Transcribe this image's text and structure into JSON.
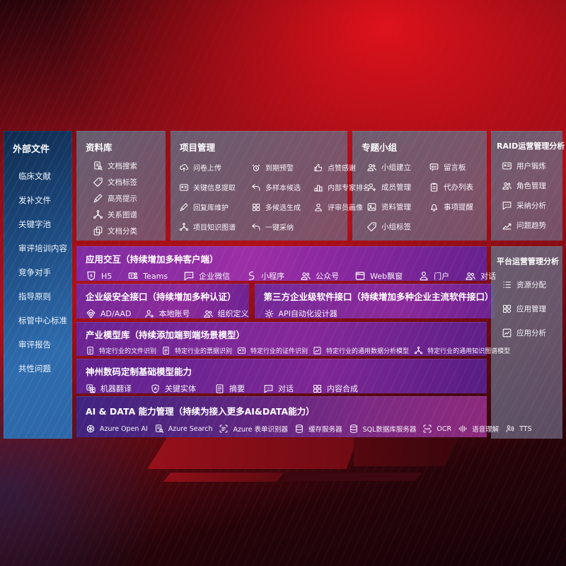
{
  "colors": {
    "background_red": "#ae1019",
    "sidebar_blue_top": "#0f2b50",
    "sidebar_blue_bottom": "#2e6cae",
    "box_slate": "#636c81",
    "purple_band": "#8a28a0",
    "purple_band_blue": "#3f2480",
    "text": "#ffffff"
  },
  "sidebar": {
    "title": "外部文件",
    "items": [
      "临床文献",
      "发补文件",
      "关键字池",
      "审评培训内容",
      "竞争对手",
      "指导原则",
      "标管中心标准",
      "审评报告",
      "共性问题"
    ]
  },
  "library": {
    "title": "资料库",
    "items": [
      {
        "icon": "doc-search",
        "label": "文档搜索"
      },
      {
        "icon": "tag",
        "label": "文档标签"
      },
      {
        "icon": "pen",
        "label": "高亮提示"
      },
      {
        "icon": "graph",
        "label": "关系图谱"
      },
      {
        "icon": "copy",
        "label": "文档分类"
      }
    ]
  },
  "project": {
    "title": "项目管理",
    "items": [
      {
        "icon": "cloud-up",
        "label": "问卷上传"
      },
      {
        "icon": "alarm",
        "label": "到期预警"
      },
      {
        "icon": "thumb",
        "label": "点赞感谢"
      },
      {
        "icon": "card",
        "label": "关键信息提取"
      },
      {
        "icon": "reply",
        "label": "多样本候选"
      },
      {
        "icon": "podium",
        "label": "内部专家排名"
      },
      {
        "icon": "pen",
        "label": "回复库维护"
      },
      {
        "icon": "grid",
        "label": "多候选生成"
      },
      {
        "icon": "person",
        "label": "评审员画像"
      },
      {
        "icon": "graph",
        "label": "项目知识图谱"
      },
      {
        "icon": "reply",
        "label": "一键采纳"
      }
    ]
  },
  "group": {
    "title": "专题小组",
    "items": [
      {
        "icon": "people",
        "label": "小组建立"
      },
      {
        "icon": "bbs",
        "label": "留言板"
      },
      {
        "icon": "person-plus",
        "label": "成员管理"
      },
      {
        "icon": "clipboard",
        "label": "代办列表"
      },
      {
        "icon": "image",
        "label": "资料管理"
      },
      {
        "icon": "bell",
        "label": "事项提醒"
      },
      {
        "icon": "tag",
        "label": "小组标签"
      }
    ]
  },
  "raid": {
    "title": "RAID运营管理分析",
    "items": [
      {
        "icon": "card",
        "label": "用户锻炼"
      },
      {
        "icon": "people",
        "label": "角色管理"
      },
      {
        "icon": "chat",
        "label": "采纳分析"
      },
      {
        "icon": "trend",
        "label": "问题趋势"
      }
    ]
  },
  "platform": {
    "title": "平台运营管理分析",
    "items": [
      {
        "icon": "list",
        "label": "资源分配"
      },
      {
        "icon": "apps",
        "label": "应用管理"
      },
      {
        "icon": "chart",
        "label": "应用分析"
      }
    ]
  },
  "interaction": {
    "title": "应用交互（持续增加多种客户端）",
    "items": [
      {
        "icon": "h5",
        "label": "H5"
      },
      {
        "icon": "teams",
        "label": "Teams"
      },
      {
        "icon": "chat",
        "label": "企业微信"
      },
      {
        "icon": "scurve",
        "label": "小程序"
      },
      {
        "icon": "people",
        "label": "公众号"
      },
      {
        "icon": "window",
        "label": "Web飘窗"
      },
      {
        "icon": "person",
        "label": "门户"
      },
      {
        "icon": "people",
        "label": "对话"
      }
    ]
  },
  "security": {
    "title": "企业级安全接口（持续增加多种认证）",
    "items": [
      {
        "icon": "diamond",
        "label": "AD/AAD"
      },
      {
        "icon": "person-plus",
        "label": "本地账号"
      },
      {
        "icon": "people",
        "label": "组织定义"
      }
    ]
  },
  "thirdparty": {
    "title": "第三方企业级软件接口（持续增加多种企业主流软件接口）",
    "items": [
      {
        "icon": "gear",
        "label": "API自动化设计器"
      }
    ]
  },
  "industry": {
    "title": "产业模型库（持续添加端到端场景模型）",
    "items": [
      {
        "icon": "doc",
        "label": "特定行业的文件识别"
      },
      {
        "icon": "doc-lines",
        "label": "特定行业的票据识别"
      },
      {
        "icon": "card",
        "label": "特定行业的证件识别"
      },
      {
        "icon": "chart",
        "label": "特定行业的通用数据分析模型"
      },
      {
        "icon": "graph",
        "label": "特定行业的通用知识图谱模型"
      }
    ]
  },
  "basemodel": {
    "title": "神州数码定制基础模型能力",
    "items": [
      {
        "icon": "translate",
        "label": "机器翻译"
      },
      {
        "icon": "shield-a",
        "label": "关键实体"
      },
      {
        "icon": "doc-lines",
        "label": "摘要"
      },
      {
        "icon": "chat",
        "label": "对话"
      },
      {
        "icon": "grid",
        "label": "内容合成"
      }
    ]
  },
  "aidata": {
    "title": "AI & DATA 能力管理（持续为接入更多AI&DATA能力）",
    "items": [
      {
        "icon": "swirl",
        "label": "Azure Open AI"
      },
      {
        "icon": "doc-search",
        "label": "Azure Search"
      },
      {
        "icon": "form",
        "label": "Azure 表单识别器"
      },
      {
        "icon": "db",
        "label": "缓存服务器"
      },
      {
        "icon": "db",
        "label": "SQL数据库服务器"
      },
      {
        "icon": "ocr",
        "label": "OCR"
      },
      {
        "icon": "speech",
        "label": "语音理解"
      },
      {
        "icon": "tts",
        "label": "TTS"
      }
    ]
  }
}
